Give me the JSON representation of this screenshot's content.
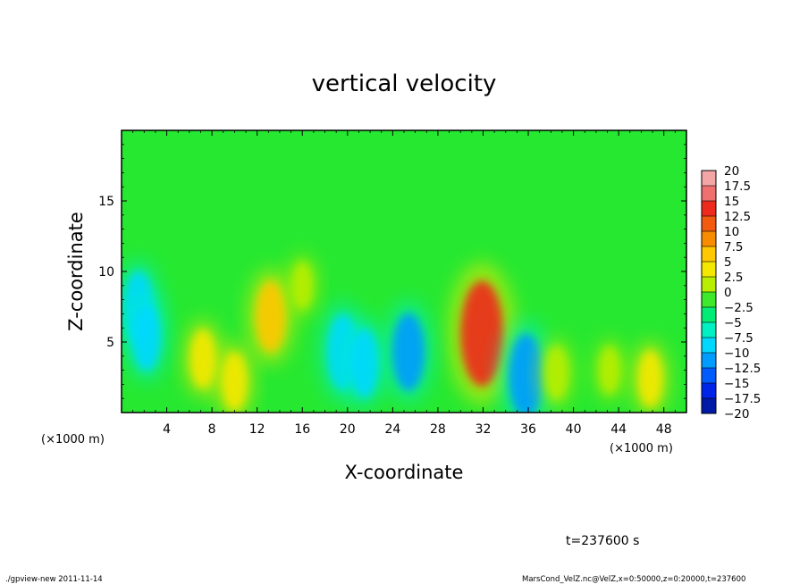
{
  "chart_data": {
    "type": "heatmap",
    "title": "vertical velocity",
    "xlabel": "X-coordinate",
    "ylabel": "Z-coordinate",
    "x_unit_left": "(×1000 m)",
    "x_unit_right": "(×1000 m)",
    "xlim": [
      0,
      50
    ],
    "ylim": [
      0,
      20
    ],
    "xticks": [
      "4",
      "8",
      "12",
      "16",
      "20",
      "24",
      "28",
      "32",
      "36",
      "40",
      "44",
      "48"
    ],
    "xtick_values": [
      4,
      8,
      12,
      16,
      20,
      24,
      28,
      32,
      36,
      40,
      44,
      48
    ],
    "yticks": [
      "5",
      "10",
      "15"
    ],
    "ytick_values": [
      5,
      10,
      15
    ],
    "colorbar": {
      "labels": [
        "20",
        "17.5",
        "15",
        "12.5",
        "10",
        "7.5",
        "5",
        "2.5",
        "0",
        "−2.5",
        "−5",
        "−7.5",
        "−10",
        "−12.5",
        "−15",
        "−17.5",
        "−20"
      ],
      "values": [
        20,
        17.5,
        15,
        12.5,
        10,
        7.5,
        5,
        2.5,
        0,
        -2.5,
        -5,
        -7.5,
        -10,
        -12.5,
        -15,
        -17.5,
        -20
      ],
      "colors": [
        "#f4a6a6",
        "#f06f6f",
        "#ee2a1f",
        "#f25a10",
        "#f78c00",
        "#ffc800",
        "#f4e800",
        "#b8ee00",
        "#3ee82a",
        "#00ec74",
        "#00f0c4",
        "#00d8ff",
        "#009cff",
        "#005cff",
        "#0024e8",
        "#001aa8",
        "#6a10b8"
      ]
    },
    "features": [
      {
        "x": 31.9,
        "z": 5.6,
        "w": 15.5
      },
      {
        "x": 13.2,
        "z": 6.8,
        "w": 7.5
      },
      {
        "x": 10.0,
        "z": 2.2,
        "w": 4.5
      },
      {
        "x": 7.2,
        "z": 3.8,
        "w": 4.5
      },
      {
        "x": 1.5,
        "z": 7.5,
        "w": -7.5
      },
      {
        "x": 2.2,
        "z": 5.3,
        "w": -6.5
      },
      {
        "x": 19.6,
        "z": 4.3,
        "w": -8.5
      },
      {
        "x": 21.5,
        "z": 3.5,
        "w": -7.0
      },
      {
        "x": 25.4,
        "z": 4.3,
        "w": -9.0
      },
      {
        "x": 35.8,
        "z": 2.6,
        "w": -10.5
      },
      {
        "x": 38.5,
        "z": 2.8,
        "w": 3.5
      },
      {
        "x": 46.8,
        "z": 2.4,
        "w": 4.0
      },
      {
        "x": 43.2,
        "z": 3.0,
        "w": 2.0
      },
      {
        "x": 16.0,
        "z": 9.0,
        "w": 2.0
      }
    ]
  },
  "footer": {
    "time_label": "t=237600 s",
    "program": "./gpview-new  2011-11-14",
    "source": "MarsCond_VelZ.nc@VelZ,x=0:50000,z=0:20000,t=237600"
  }
}
